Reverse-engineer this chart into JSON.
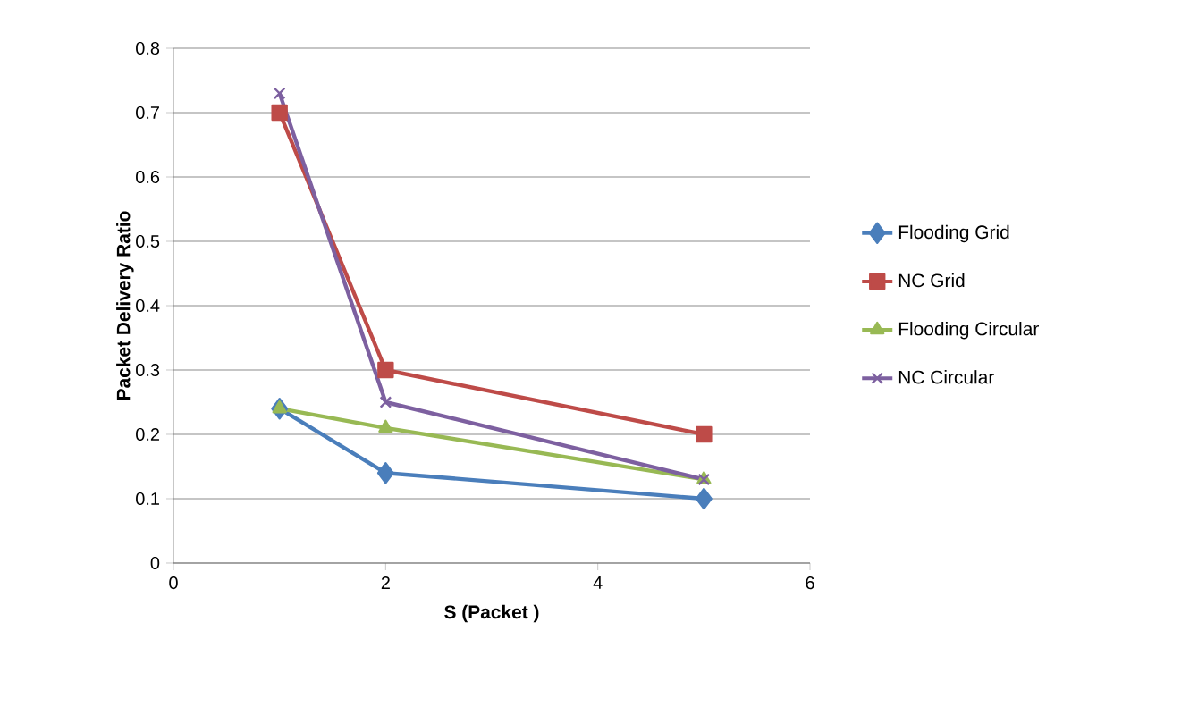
{
  "chart_data": {
    "type": "line",
    "xlabel": "S   (Packet )",
    "ylabel": "Packet Delivery Ratio",
    "x": [
      1,
      2,
      5
    ],
    "series": [
      {
        "name": "Flooding Grid",
        "color": "#4a7ebb",
        "marker": "diamond",
        "values": [
          0.24,
          0.14,
          0.1
        ]
      },
      {
        "name": "NC Grid",
        "color": "#be4b48",
        "marker": "square",
        "values": [
          0.7,
          0.3,
          0.2
        ]
      },
      {
        "name": "Flooding Circular",
        "color": "#98b954",
        "marker": "triangle",
        "values": [
          0.24,
          0.21,
          0.13
        ]
      },
      {
        "name": "NC Circular",
        "color": "#7d60a0",
        "marker": "cross",
        "values": [
          0.73,
          0.25,
          0.13
        ]
      }
    ],
    "xlim": [
      0,
      6
    ],
    "xticks": [
      0,
      2,
      4,
      6
    ],
    "ylim": [
      0,
      0.8
    ],
    "yticks": [
      0,
      0.1,
      0.2,
      0.3,
      0.4,
      0.5,
      0.6,
      0.7,
      0.8
    ],
    "grid": "y",
    "legend": "right",
    "line_style": "solid"
  }
}
